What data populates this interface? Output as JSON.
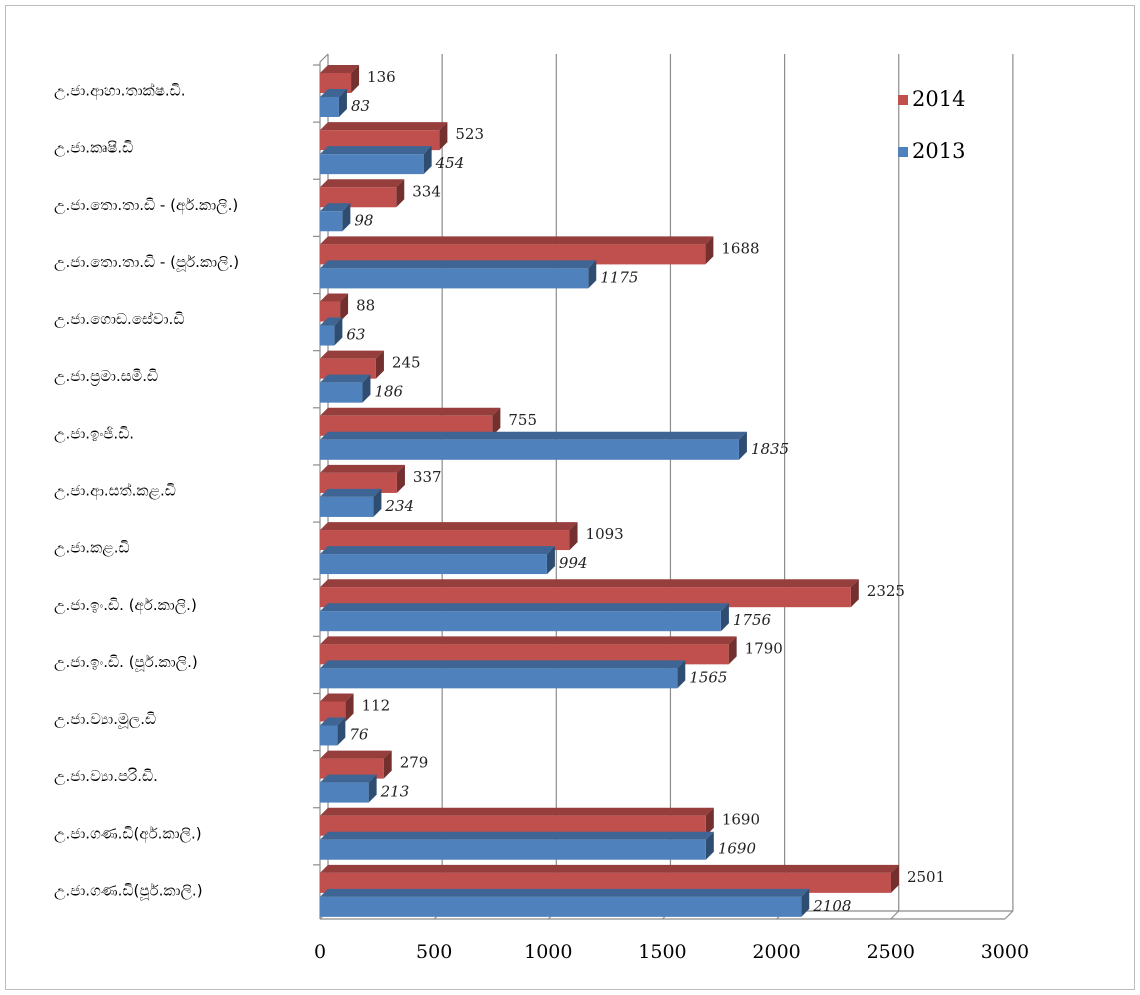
{
  "chart_data": {
    "type": "bar",
    "orientation": "horizontal",
    "style": "3d-clustered",
    "categories": [
      "උ.ජා.ආහා.තාක්ෂ.ඩි.",
      "උ.ජා.කෘෂි.ඩි",
      "උ.ජා.තො.තා.ඩි - (අර්.කාලි.)",
      "උ.ජා.තො.තා.ඩි - (පූර්.කාලි.)",
      "උ.ජා.ගොඩ.සේවා.ඩි",
      "උ.ජා.ප්‍රමා.සමී.ඩි",
      "උ.ජා.ඉංජි.ඩි.",
      "උ.ජා.ආ.සත්.කළ.ඩි",
      "උ.ජා.කළ.ඩි",
      "උ.ජා.ඉං.ඩි. (අර්.කාලි.)",
      "උ.ජා.ඉං.ඩි. (පූර්.කාලි.)",
      "උ.ජා.ව්‍යා.මූල.ඩි",
      "උ.ජා.ව්‍යා.පරි.ඩි.",
      "උ.ජා.ගණ.ඩි(අර්.කාලි.)",
      "උ.ජා.ගණ.ඩි(පූර්.කාලි.)"
    ],
    "series": [
      {
        "name": "2014",
        "color": "#c0504d",
        "values": [
          136,
          523,
          334,
          1688,
          88,
          245,
          755,
          337,
          1093,
          2325,
          1790,
          112,
          279,
          1690,
          2501
        ]
      },
      {
        "name": "2013",
        "color": "#4f81bd",
        "values": [
          83,
          454,
          98,
          1175,
          63,
          186,
          1835,
          234,
          994,
          1756,
          1565,
          76,
          213,
          1690,
          2108
        ]
      }
    ],
    "xlim": [
      0,
      3000
    ],
    "xticks": [
      0,
      500,
      1000,
      1500,
      2000,
      2500,
      3000
    ],
    "grid": true,
    "legend_position": "top-right"
  }
}
